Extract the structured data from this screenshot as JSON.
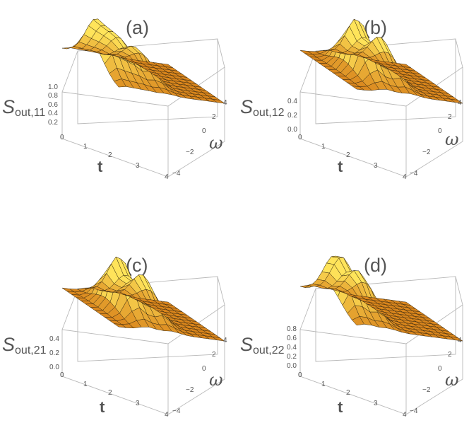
{
  "chart_data": [
    {
      "type": "surface",
      "panel_label": "(a)",
      "zlabel": {
        "main": "S",
        "sub": "out,11"
      },
      "xlabel": "t",
      "ylabel": "ω",
      "xlim": [
        0,
        4
      ],
      "ylim": [
        -4,
        4
      ],
      "zlim": [
        0,
        1.0
      ],
      "xticks": [
        "0",
        "1",
        "2",
        "3",
        "4"
      ],
      "yticks": [
        "−4",
        "−2",
        "0",
        "2",
        "4"
      ],
      "zticks": [
        "1.0",
        "0.8",
        "0.6",
        "0.4",
        "0.2"
      ],
      "approx_peaks": [
        {
          "t": 0.3,
          "omega": 0,
          "value": 0.95
        },
        {
          "t": 1.0,
          "omega": 0,
          "value": 0.7
        },
        {
          "t": 1.8,
          "omega": 0,
          "value": 0.55
        }
      ],
      "colormap": [
        "#c85a00",
        "#ffe45a"
      ]
    },
    {
      "type": "surface",
      "panel_label": "(b)",
      "zlabel": {
        "main": "S",
        "sub": "out,12"
      },
      "xlabel": "t",
      "ylabel": "ω",
      "xlim": [
        0,
        4
      ],
      "ylim": [
        -4,
        4
      ],
      "zlim": [
        0,
        0.4
      ],
      "xticks": [
        "0",
        "1",
        "2",
        "3",
        "4"
      ],
      "yticks": [
        "−4",
        "−2",
        "0",
        "2",
        "4"
      ],
      "zticks": [
        "0.4",
        "0.2",
        "0.0"
      ],
      "approx_peaks": [
        {
          "t": 1.1,
          "omega": 0,
          "value": 0.42
        },
        {
          "t": 2.0,
          "omega": 0,
          "value": 0.3
        }
      ],
      "colormap": [
        "#c85a00",
        "#ffe45a"
      ]
    },
    {
      "type": "surface",
      "panel_label": "(c)",
      "zlabel": {
        "main": "S",
        "sub": "out,21"
      },
      "xlabel": "t",
      "ylabel": "ω",
      "xlim": [
        0,
        4
      ],
      "ylim": [
        -4,
        4
      ],
      "zlim": [
        0,
        0.4
      ],
      "xticks": [
        "0",
        "1",
        "2",
        "3",
        "4"
      ],
      "yticks": [
        "−4",
        "−2",
        "0",
        "2",
        "4"
      ],
      "zticks": [
        "0.4",
        "0.2",
        "0.0"
      ],
      "approx_peaks": [
        {
          "t": 1.1,
          "omega": 0,
          "value": 0.42
        },
        {
          "t": 2.0,
          "omega": 0,
          "value": 0.3
        }
      ],
      "colormap": [
        "#c85a00",
        "#ffe45a"
      ]
    },
    {
      "type": "surface",
      "panel_label": "(d)",
      "zlabel": {
        "main": "S",
        "sub": "out,22"
      },
      "xlabel": "t",
      "ylabel": "ω",
      "xlim": [
        0,
        4
      ],
      "ylim": [
        -4,
        4
      ],
      "zlim": [
        0,
        0.8
      ],
      "xticks": [
        "0",
        "1",
        "2",
        "3",
        "4"
      ],
      "yticks": [
        "−4",
        "−2",
        "0",
        "2",
        "4"
      ],
      "zticks": [
        "0.8",
        "0.6",
        "0.4",
        "0.2",
        "0.0"
      ],
      "approx_peaks": [
        {
          "t": 0.4,
          "omega": 0,
          "value": 0.85
        },
        {
          "t": 1.2,
          "omega": 0,
          "value": 0.6
        }
      ],
      "colormap": [
        "#c85a00",
        "#ffe45a"
      ]
    }
  ]
}
